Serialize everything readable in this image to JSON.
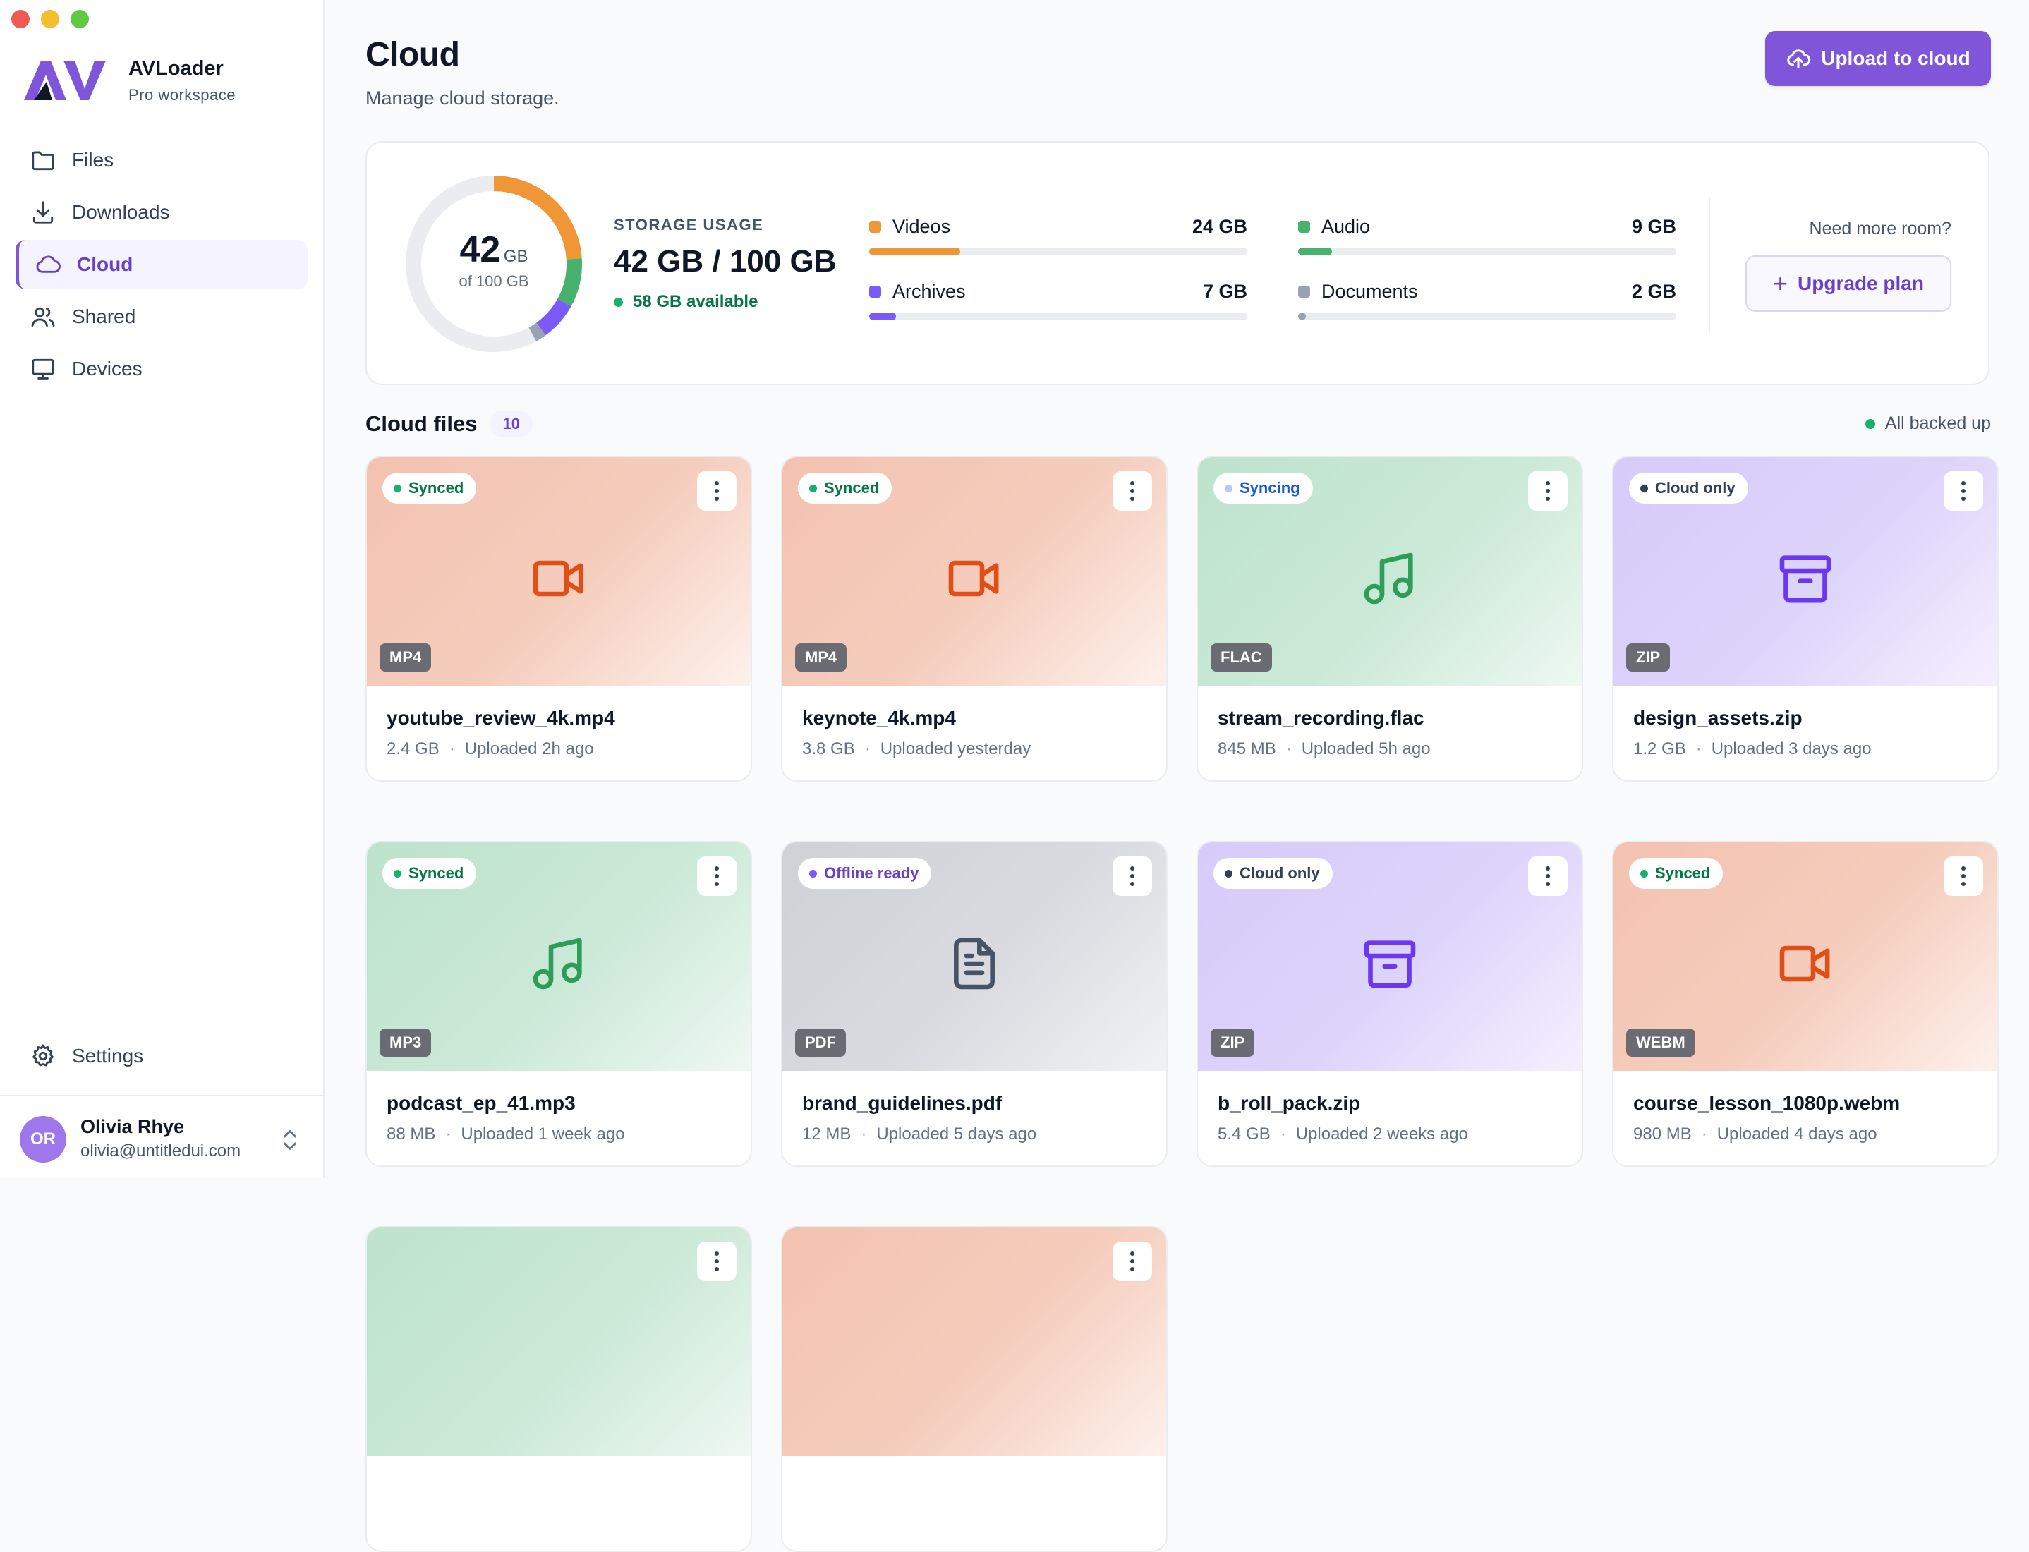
{
  "brand": {
    "name": "AVLoader",
    "subtitle": "Pro workspace"
  },
  "nav": [
    {
      "label": "Files",
      "icon": "folder-icon",
      "active": false
    },
    {
      "label": "Downloads",
      "icon": "download-icon",
      "active": false
    },
    {
      "label": "Cloud",
      "icon": "cloud-icon",
      "active": true
    },
    {
      "label": "Shared",
      "icon": "users-icon",
      "active": false
    },
    {
      "label": "Devices",
      "icon": "monitor-icon",
      "active": false
    }
  ],
  "settings_label": "Settings",
  "user": {
    "initials": "OR",
    "name": "Olivia Rhye",
    "email": "olivia@untitledui.com"
  },
  "header": {
    "title": "Cloud",
    "subtitle": "Manage cloud storage.",
    "upload_label": "Upload to cloud"
  },
  "storage": {
    "donut_value": "42",
    "donut_unit": "GB",
    "donut_of": "of 100 GB",
    "label": "STORAGE USAGE",
    "value": "42 GB / 100 GB",
    "available": "58 GB available",
    "total_gb": 100,
    "categories": [
      {
        "name": "Videos",
        "size": "24 GB",
        "gb": 24,
        "color": "#ef9637"
      },
      {
        "name": "Audio",
        "size": "9 GB",
        "gb": 9,
        "color": "#47b26d"
      },
      {
        "name": "Archives",
        "size": "7 GB",
        "gb": 7,
        "color": "#7a5af8"
      },
      {
        "name": "Documents",
        "size": "2 GB",
        "gb": 2,
        "color": "#98a2b3"
      }
    ],
    "need_room": "Need more room?",
    "upgrade_label": "Upgrade plan"
  },
  "files_section": {
    "title": "Cloud files",
    "count": "10",
    "backup_status": "All backed up"
  },
  "files": [
    {
      "name": "youtube_review_4k.mp4",
      "size": "2.4 GB",
      "uploaded": "Uploaded 2h ago",
      "type": "MP4",
      "kind": "video",
      "status": "Synced"
    },
    {
      "name": "keynote_4k.mp4",
      "size": "3.8 GB",
      "uploaded": "Uploaded yesterday",
      "type": "MP4",
      "kind": "video",
      "status": "Synced"
    },
    {
      "name": "stream_recording.flac",
      "size": "845 MB",
      "uploaded": "Uploaded 5h ago",
      "type": "FLAC",
      "kind": "audio",
      "status": "Syncing"
    },
    {
      "name": "design_assets.zip",
      "size": "1.2 GB",
      "uploaded": "Uploaded 3 days ago",
      "type": "ZIP",
      "kind": "archive",
      "status": "Cloud only"
    },
    {
      "name": "podcast_ep_41.mp3",
      "size": "88 MB",
      "uploaded": "Uploaded 1 week ago",
      "type": "MP3",
      "kind": "audio",
      "status": "Synced"
    },
    {
      "name": "brand_guidelines.pdf",
      "size": "12 MB",
      "uploaded": "Uploaded 5 days ago",
      "type": "PDF",
      "kind": "doc",
      "status": "Offline ready"
    },
    {
      "name": "b_roll_pack.zip",
      "size": "5.4 GB",
      "uploaded": "Uploaded 2 weeks ago",
      "type": "ZIP",
      "kind": "archive",
      "status": "Cloud only"
    },
    {
      "name": "course_lesson_1080p.webm",
      "size": "980 MB",
      "uploaded": "Uploaded 4 days ago",
      "type": "WEBM",
      "kind": "video",
      "status": "Synced"
    },
    {
      "kind": "audio"
    },
    {
      "kind": "video"
    }
  ],
  "status_styles": {
    "Synced": {
      "dot": "#17b26a",
      "text": "#067647"
    },
    "Syncing": {
      "dot": "#b2ccff",
      "text": "#175cd3"
    },
    "Cloud only": {
      "dot": "#344054",
      "text": "#344054"
    },
    "Offline ready": {
      "dot": "#7a5af8",
      "text": "#6941c6"
    }
  },
  "kind_colors": {
    "video": "#e04f16",
    "audio": "#2f9d5a",
    "archive": "#6938ef",
    "doc": "#475467"
  }
}
